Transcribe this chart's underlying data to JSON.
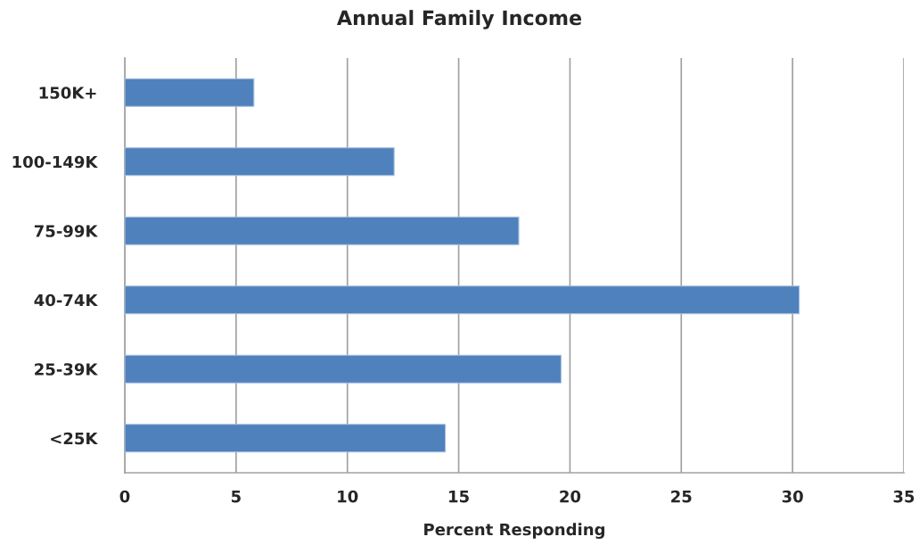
{
  "chart_data": {
    "type": "bar",
    "orientation": "horizontal",
    "title": "Annual Family Income",
    "xlabel": "Percent Responding",
    "categories": [
      "150K+",
      "100-149K",
      "75-99K",
      "40-74K",
      "25-39K",
      "<25K"
    ],
    "values": [
      5.8,
      12.1,
      17.7,
      30.3,
      19.6,
      14.4
    ],
    "color": "#4f81bd",
    "xlim": [
      0,
      35
    ],
    "xticks": [
      0,
      5,
      10,
      15,
      20,
      25,
      30,
      35
    ],
    "grid": "x"
  }
}
